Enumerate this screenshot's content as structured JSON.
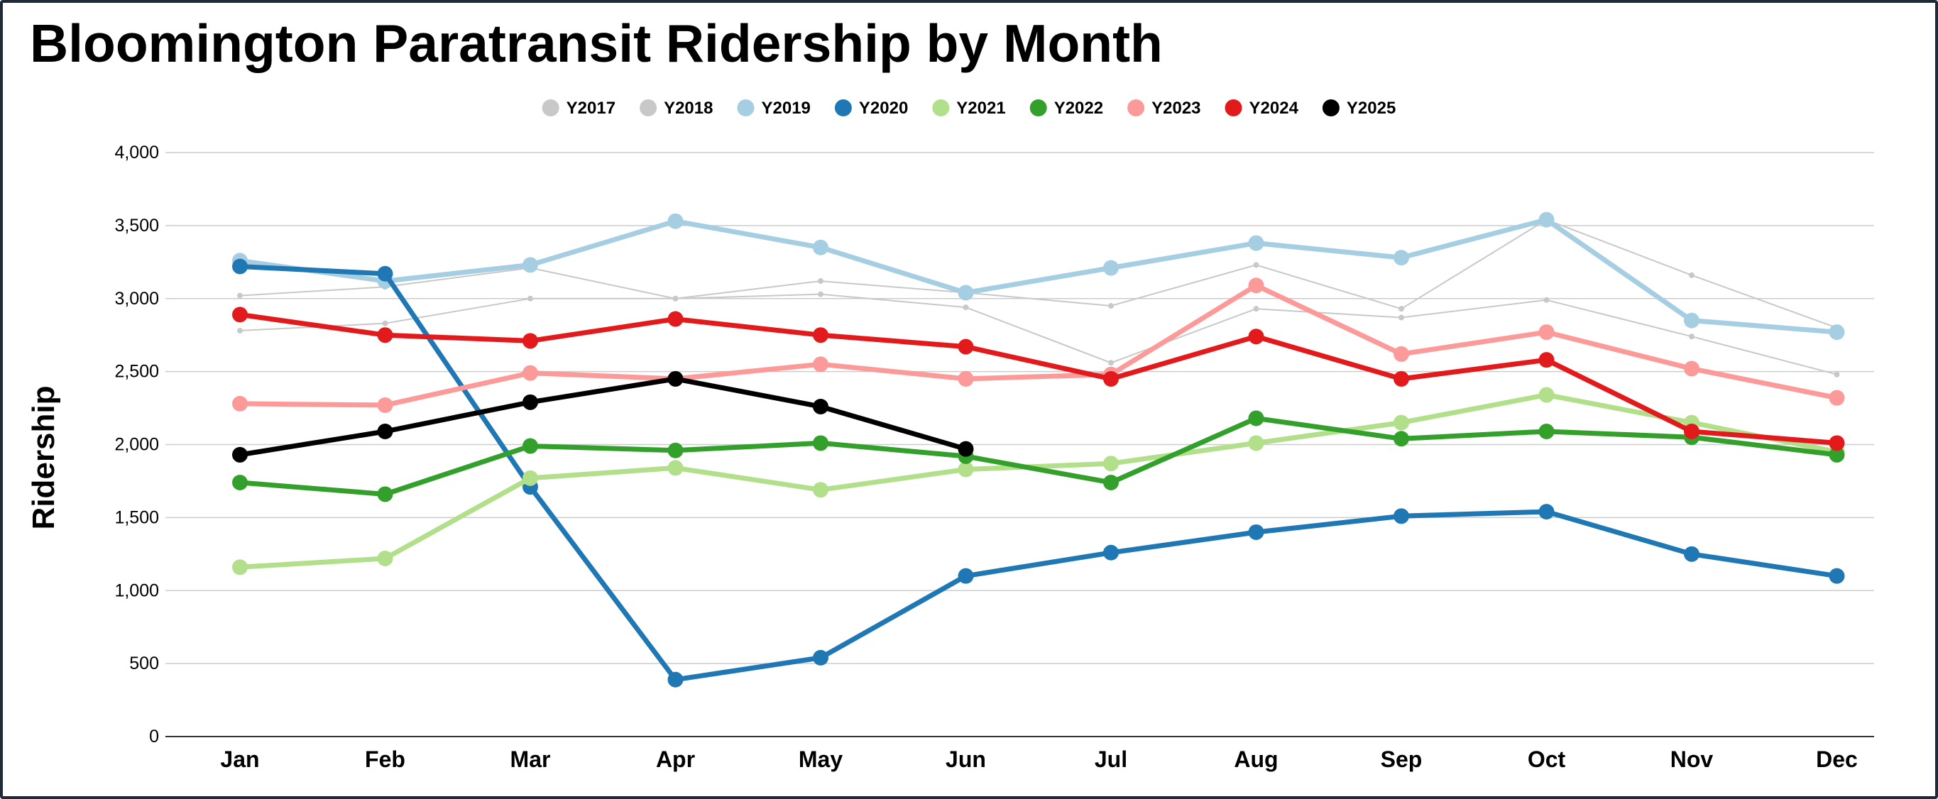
{
  "chart_data": {
    "type": "line",
    "title": "Bloomington Paratransit Ridership by Month",
    "ylabel": "Ridership",
    "xlabel": "",
    "categories": [
      "Jan",
      "Feb",
      "Mar",
      "Apr",
      "May",
      "Jun",
      "Jul",
      "Aug",
      "Sep",
      "Oct",
      "Nov",
      "Dec"
    ],
    "ylim": [
      0,
      4000
    ],
    "yticks": [
      0,
      500,
      1000,
      1500,
      2000,
      2500,
      3000,
      3500,
      4000
    ],
    "ytick_labels": [
      "0",
      "500",
      "1,000",
      "1,500",
      "2,000",
      "2,500",
      "3,000",
      "3,500",
      "4,000"
    ],
    "grid": true,
    "legend_position": "top-center",
    "series": [
      {
        "name": "Y2017",
        "color": "#c8c8c8",
        "emphasis": false,
        "values": [
          2780,
          2830,
          3000,
          3000,
          3030,
          2940,
          2560,
          2930,
          2870,
          2990,
          2740,
          2480
        ]
      },
      {
        "name": "Y2018",
        "color": "#c8c8c8",
        "emphasis": false,
        "values": [
          3020,
          3080,
          3210,
          3000,
          3120,
          3040,
          2950,
          3230,
          2930,
          3540,
          3160,
          2800
        ]
      },
      {
        "name": "Y2019",
        "color": "#a6cee3",
        "emphasis": true,
        "values": [
          3260,
          3120,
          3230,
          3530,
          3350,
          3040,
          3210,
          3380,
          3280,
          3540,
          2850,
          2770
        ]
      },
      {
        "name": "Y2020",
        "color": "#1f78b4",
        "emphasis": true,
        "values": [
          3220,
          3170,
          1710,
          390,
          540,
          1100,
          1260,
          1400,
          1510,
          1540,
          1250,
          1100
        ]
      },
      {
        "name": "Y2021",
        "color": "#b2df8a",
        "emphasis": true,
        "values": [
          1160,
          1220,
          1770,
          1840,
          1690,
          1830,
          1870,
          2010,
          2150,
          2340,
          2150,
          1950
        ]
      },
      {
        "name": "Y2022",
        "color": "#33a02c",
        "emphasis": true,
        "values": [
          1740,
          1660,
          1990,
          1960,
          2010,
          1920,
          1740,
          2180,
          2040,
          2090,
          2050,
          1930
        ]
      },
      {
        "name": "Y2023",
        "color": "#fb9a99",
        "emphasis": true,
        "values": [
          2280,
          2270,
          2490,
          2450,
          2550,
          2450,
          2480,
          3090,
          2620,
          2770,
          2520,
          2320
        ]
      },
      {
        "name": "Y2024",
        "color": "#e31a1c",
        "emphasis": true,
        "values": [
          2890,
          2750,
          2710,
          2860,
          2750,
          2670,
          2450,
          2740,
          2450,
          2580,
          2090,
          2010
        ]
      },
      {
        "name": "Y2025",
        "color": "#000000",
        "emphasis": true,
        "values": [
          1930,
          2090,
          2290,
          2450,
          2260,
          1970,
          null,
          null,
          null,
          null,
          null,
          null
        ]
      }
    ]
  }
}
